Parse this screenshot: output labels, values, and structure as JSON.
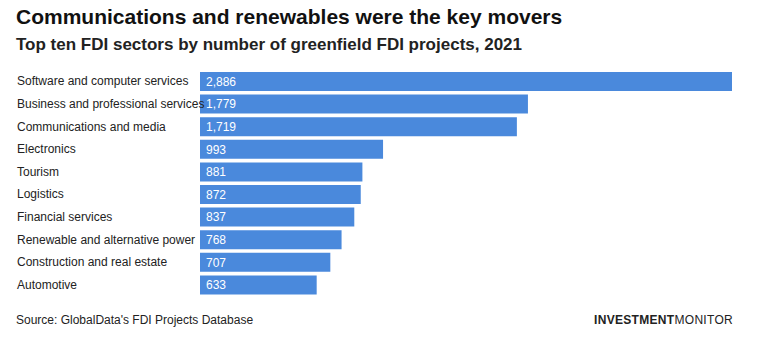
{
  "chart_data": {
    "type": "bar",
    "orientation": "horizontal",
    "title": "Communications and renewables were the key movers",
    "subtitle": "Top ten FDI sectors by number of greenfield FDI projects, 2021",
    "categories": [
      "Software and computer services",
      "Business and professional services",
      "Communications and media",
      "Electronics",
      "Tourism",
      "Logistics",
      "Financial services",
      "Renewable and alternative power",
      "Construction and real estate",
      "Automotive"
    ],
    "values": [
      2886,
      1779,
      1719,
      993,
      881,
      872,
      837,
      768,
      707,
      633
    ],
    "value_labels": [
      "2,886",
      "1,779",
      "1,719",
      "993",
      "881",
      "872",
      "837",
      "768",
      "707",
      "633"
    ],
    "data_labels": true,
    "color": "#4a89dc",
    "xlim": [
      0,
      2886
    ],
    "tick_labels": false,
    "grid": false,
    "annotations": {
      "source": "Source: GlobalData's FDI Projects Database",
      "brand": [
        "INVESTMENT",
        "MONITOR"
      ]
    }
  }
}
